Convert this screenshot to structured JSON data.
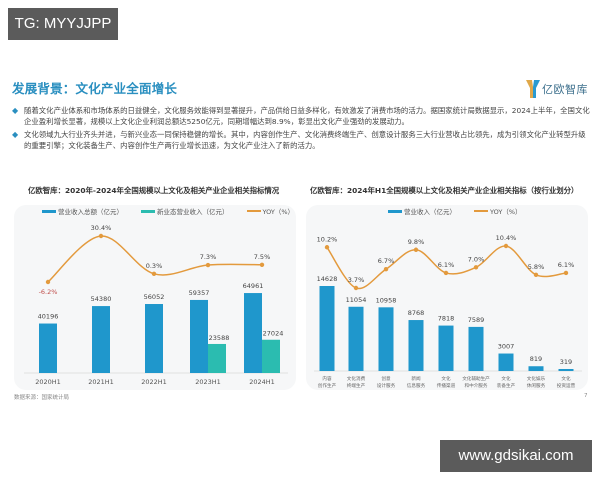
{
  "overlay_tags": {
    "top_left": "TG: MYYJJPP",
    "bottom_right": "www.gdsikai.com"
  },
  "header": {
    "title": "发展背景：文化产业全面增长",
    "logo_text": "亿欧智库"
  },
  "bullets": [
    "随着文化产业体系和市场体系的日益健全，文化服务效能得到显著提升，产品供给日益多样化，有效激发了消费市场的活力。据国家统计局数据显示，2024上半年，全国文化企业盈利增长显著，规模以上文化企业利润总额达5250亿元，同期增幅达到8.9%，彰显出文化产业强劲的发展动力。",
    "文化领域九大行业齐头并进，与新兴业态一同保持稳健的增长。其中，内容创作生产、文化消费终端生产、创意设计服务三大行业营收占比领先，成为引领文化产业转型升级的重要引擎；文化装备生产、内容创作生产两行业增长迅速，为文化产业注入了新的活力。"
  ],
  "footer": {
    "source": "数据来源：国家统计局",
    "page": "7"
  },
  "colors": {
    "accent_blue": "#1f97cc",
    "teal": "#2bbcb0",
    "yoy_orange": "#e39a3d",
    "negative_red": "#c0504d",
    "title_blue": "#2a8fc0"
  },
  "chart_data": [
    {
      "type": "bar",
      "title": "亿欧智库：2020年-2024年全国规模以上文化及相关产业企业相关指标情况",
      "categories": [
        "2020H1",
        "2021H1",
        "2022H1",
        "2023H1",
        "2024H1"
      ],
      "legend": [
        "营业收入总额（亿元）",
        "新业态营业收入（亿元）",
        "YOY（%）"
      ],
      "legend_position": "top",
      "grid": false,
      "series": [
        {
          "name": "营业收入总额（亿元）",
          "type": "bar",
          "values": [
            40196,
            54380,
            56052,
            59357,
            64961
          ],
          "labels": [
            "40196",
            "54380",
            "56052",
            "59357",
            "64961"
          ]
        },
        {
          "name": "新业态营业收入（亿元）",
          "type": "bar",
          "values": [
            null,
            null,
            null,
            23588,
            27024
          ],
          "labels": [
            "",
            "",
            "",
            "23588",
            "27024"
          ]
        },
        {
          "name": "YOY（%）",
          "type": "line",
          "values": [
            -6.2,
            30.4,
            0.3,
            7.3,
            7.5
          ],
          "labels": [
            "-6.2%",
            "30.4%",
            "0.3%",
            "7.3%",
            "7.5%"
          ]
        }
      ],
      "xlabel": "",
      "ylabel": ""
    },
    {
      "type": "bar",
      "title": "亿欧智库：2024年H1全国规模以上文化及相关产业企业相关指标（按行业划分）",
      "categories": [
        "内容创作生产",
        "文化消费终端生产",
        "创意设计服务",
        "新闻信息服务",
        "文化传播渠道",
        "文化辅助生产和中介服务",
        "文化装备生产",
        "文化娱乐休闲服务",
        "文化投资运营"
      ],
      "category_lines": [
        [
          "内容",
          "创作生产"
        ],
        [
          "文化消费",
          "终端生产"
        ],
        [
          "创意",
          "设计服务"
        ],
        [
          "新闻",
          "信息服务"
        ],
        [
          "文化",
          "传播渠道"
        ],
        [
          "文化辅助生产",
          "和中介服务"
        ],
        [
          "文化",
          "装备生产"
        ],
        [
          "文化娱乐",
          "休闲服务"
        ],
        [
          "文化",
          "投资运营"
        ]
      ],
      "legend": [
        "营业收入（亿元）",
        "YOY（%）"
      ],
      "legend_position": "top",
      "grid": false,
      "series": [
        {
          "name": "营业收入（亿元）",
          "type": "bar",
          "values": [
            14628,
            11054,
            10958,
            8768,
            7818,
            7589,
            3007,
            819,
            319
          ],
          "labels": [
            "14628",
            "11054",
            "10958",
            "8768",
            "7818",
            "7589",
            "3007",
            "819",
            "319"
          ]
        },
        {
          "name": "YOY（%）",
          "type": "line",
          "values": [
            10.2,
            3.7,
            6.7,
            9.8,
            6.1,
            7.0,
            10.4,
            5.8,
            6.1
          ],
          "labels": [
            "10.2%",
            "3.7%",
            "6.7%",
            "9.8%",
            "6.1%",
            "7.0%",
            "10.4%",
            "5.8%",
            "6.1%"
          ]
        }
      ],
      "xlabel": "",
      "ylabel": ""
    }
  ]
}
